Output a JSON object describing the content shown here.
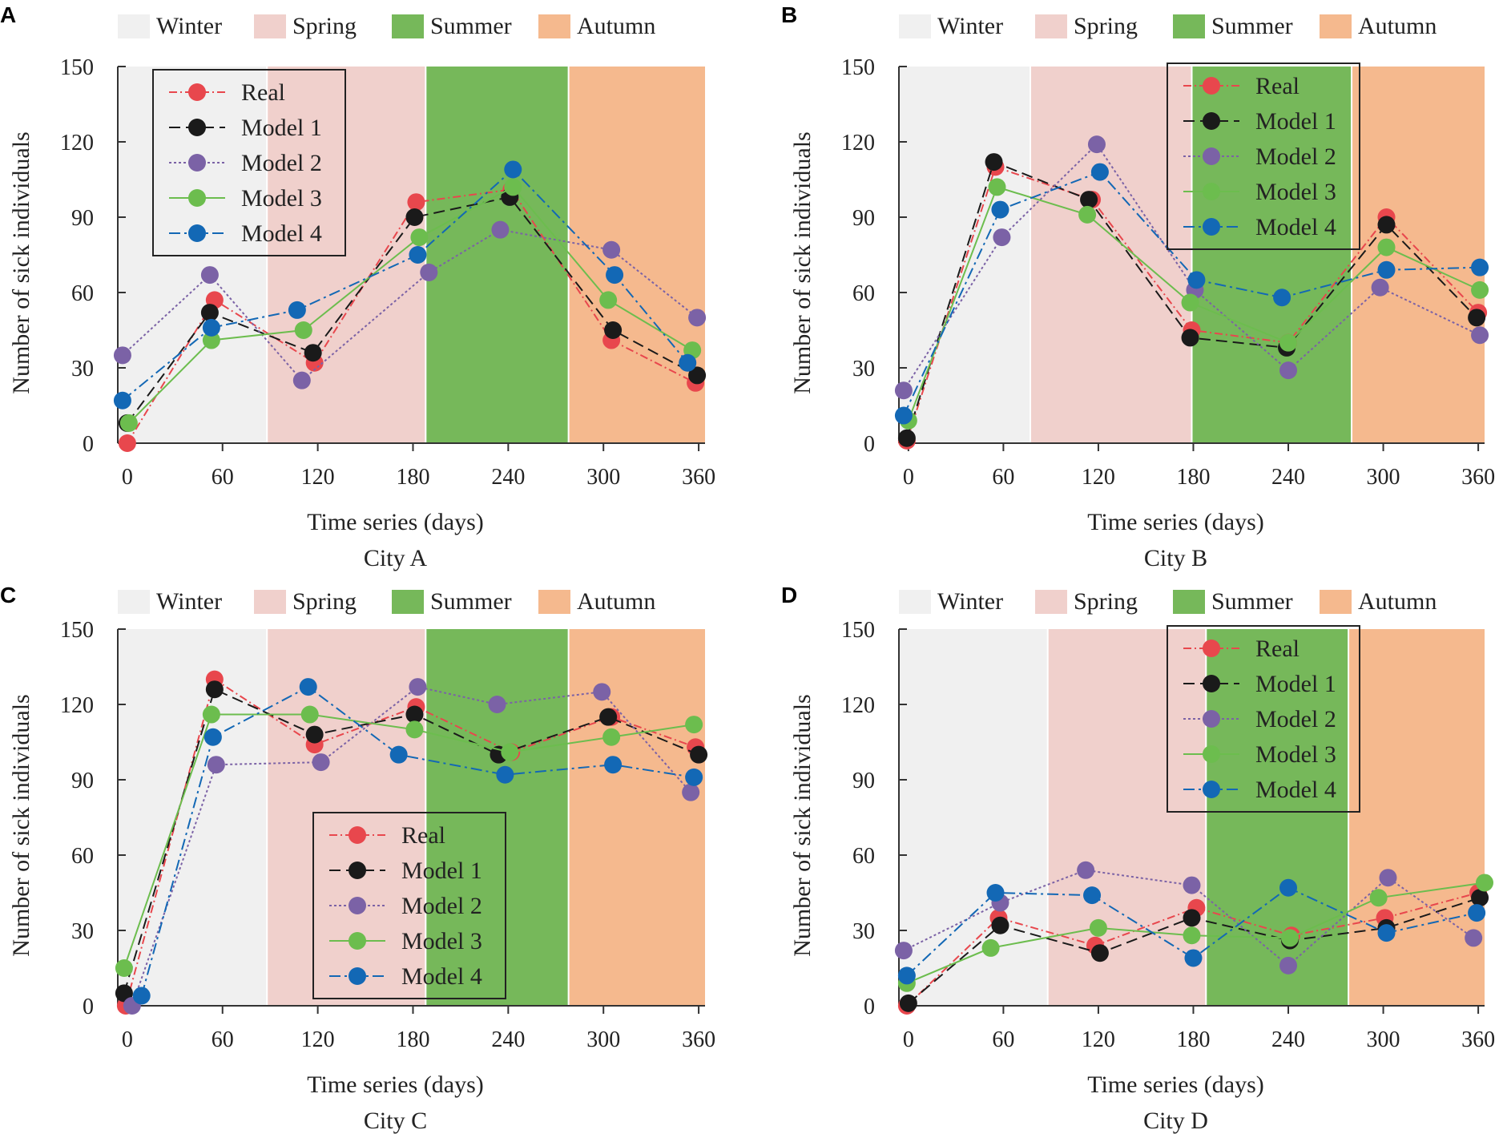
{
  "season_legend": [
    {
      "label": "Winter",
      "color": "#f0f0f0"
    },
    {
      "label": "Spring",
      "color": "#f0d0cc"
    },
    {
      "label": "Summer",
      "color": "#76b85a"
    },
    {
      "label": "Autumn",
      "color": "#f5b98e"
    }
  ],
  "series_styles": [
    {
      "name": "Real",
      "color": "#e8474d",
      "dash": "10,4,2,4"
    },
    {
      "name": "Model 1",
      "color": "#1a1a1a",
      "dash": "14,7"
    },
    {
      "name": "Model 2",
      "color": "#7b62a6",
      "dash": "3,3"
    },
    {
      "name": "Model 3",
      "color": "#6cbd4e",
      "dash": ""
    },
    {
      "name": "Model 4",
      "color": "#1368b5",
      "dash": "14,5,3,5"
    }
  ],
  "chart_data": [
    {
      "type": "line",
      "panel": "A",
      "title": "City A",
      "xlabel": "Time series (days)",
      "ylabel": "Number of sick individuals",
      "xlim": [
        -6,
        364
      ],
      "ylim": [
        0,
        150
      ],
      "xticks": [
        0,
        60,
        120,
        180,
        240,
        300,
        360
      ],
      "yticks": [
        0,
        30,
        60,
        90,
        120,
        150
      ],
      "seasons": {
        "winter": [
          -6,
          88
        ],
        "spring": [
          88,
          188
        ],
        "summer": [
          188,
          278
        ],
        "autumn": [
          278,
          364
        ]
      },
      "legend_position": "top-left",
      "series": [
        {
          "name": "Real",
          "x": [
            0,
            55,
            118,
            182,
            242,
            305,
            358
          ],
          "y": [
            0,
            57,
            32,
            96,
            101,
            41,
            24
          ]
        },
        {
          "name": "Model 1",
          "x": [
            0,
            52,
            117,
            181,
            241,
            306,
            359
          ],
          "y": [
            8,
            52,
            36,
            90,
            98,
            45,
            27
          ]
        },
        {
          "name": "Model 2",
          "x": [
            -3,
            52,
            110,
            190,
            235,
            305,
            359
          ],
          "y": [
            35,
            67,
            25,
            68,
            85,
            77,
            50
          ]
        },
        {
          "name": "Model 3",
          "x": [
            1,
            53,
            111,
            184,
            243,
            303,
            356
          ],
          "y": [
            8,
            41,
            45,
            82,
            102,
            57,
            37
          ]
        },
        {
          "name": "Model 4",
          "x": [
            -3,
            53,
            107,
            183,
            243,
            307,
            353
          ],
          "y": [
            17,
            46,
            53,
            75,
            109,
            67,
            32
          ]
        }
      ]
    },
    {
      "type": "line",
      "panel": "B",
      "title": "City B",
      "xlabel": "Time series (days)",
      "ylabel": "Number of sick individuals",
      "xlim": [
        -6,
        364
      ],
      "ylim": [
        0,
        150
      ],
      "xticks": [
        0,
        60,
        120,
        180,
        240,
        300,
        360
      ],
      "yticks": [
        0,
        30,
        60,
        90,
        120,
        150
      ],
      "seasons": {
        "winter": [
          -6,
          77
        ],
        "spring": [
          77,
          179
        ],
        "summer": [
          179,
          280
        ],
        "autumn": [
          280,
          364
        ]
      },
      "legend_position": "top-right",
      "series": [
        {
          "name": "Real",
          "x": [
            -1,
            55,
            116,
            179,
            240,
            302,
            360
          ],
          "y": [
            1,
            110,
            97,
            45,
            40,
            90,
            52
          ]
        },
        {
          "name": "Model 1",
          "x": [
            -1,
            54,
            114,
            178,
            239,
            302,
            359
          ],
          "y": [
            2,
            112,
            97,
            42,
            38,
            87,
            50
          ]
        },
        {
          "name": "Model 2",
          "x": [
            -3,
            59,
            119,
            181,
            240,
            298,
            361
          ],
          "y": [
            21,
            82,
            119,
            61,
            29,
            62,
            43
          ]
        },
        {
          "name": "Model 3",
          "x": [
            0,
            56,
            113,
            178,
            240,
            302,
            361
          ],
          "y": [
            9,
            102,
            91,
            56,
            40,
            78,
            61
          ]
        },
        {
          "name": "Model 4",
          "x": [
            -3,
            58,
            121,
            182,
            236,
            302,
            361
          ],
          "y": [
            11,
            93,
            108,
            65,
            58,
            69,
            70
          ]
        }
      ]
    },
    {
      "type": "line",
      "panel": "C",
      "title": "City C",
      "xlabel": "Time series (days)",
      "ylabel": "Number of sick individuals",
      "xlim": [
        -6,
        364
      ],
      "ylim": [
        0,
        150
      ],
      "xticks": [
        0,
        60,
        120,
        180,
        240,
        300,
        360
      ],
      "yticks": [
        0,
        30,
        60,
        90,
        120,
        150
      ],
      "seasons": {
        "winter": [
          -6,
          88
        ],
        "spring": [
          88,
          188
        ],
        "summer": [
          188,
          278
        ],
        "autumn": [
          278,
          364
        ]
      },
      "legend_position": "bottom-center",
      "series": [
        {
          "name": "Real",
          "x": [
            -1,
            55,
            118,
            182,
            242,
            305,
            358
          ],
          "y": [
            0,
            130,
            104,
            119,
            101,
            115,
            103
          ]
        },
        {
          "name": "Model 1",
          "x": [
            -2,
            55,
            118,
            181,
            234,
            303,
            360
          ],
          "y": [
            5,
            126,
            108,
            116,
            100,
            115,
            100
          ]
        },
        {
          "name": "Model 2",
          "x": [
            3,
            56,
            122,
            183,
            233,
            299,
            355
          ],
          "y": [
            0,
            96,
            97,
            127,
            120,
            125,
            85
          ]
        },
        {
          "name": "Model 3",
          "x": [
            -2,
            53,
            115,
            181,
            241,
            305,
            357
          ],
          "y": [
            15,
            116,
            116,
            110,
            101,
            107,
            112
          ]
        },
        {
          "name": "Model 4",
          "x": [
            9,
            54,
            114,
            171,
            238,
            306,
            357
          ],
          "y": [
            4,
            107,
            127,
            100,
            92,
            96,
            91
          ]
        }
      ]
    },
    {
      "type": "line",
      "panel": "D",
      "title": "City D",
      "xlabel": "Time series (days)",
      "ylabel": "Number of sick individuals",
      "xlim": [
        -6,
        364
      ],
      "ylim": [
        0,
        150
      ],
      "xticks": [
        0,
        60,
        120,
        180,
        240,
        300,
        360
      ],
      "yticks": [
        0,
        30,
        60,
        90,
        120,
        150
      ],
      "seasons": {
        "winter": [
          -6,
          88
        ],
        "spring": [
          88,
          188
        ],
        "summer": [
          188,
          278
        ],
        "autumn": [
          278,
          364
        ]
      },
      "legend_position": "top-right",
      "series": [
        {
          "name": "Real",
          "x": [
            -1,
            57,
            118,
            182,
            242,
            301,
            360
          ],
          "y": [
            0,
            35,
            24,
            39,
            28,
            35,
            45
          ]
        },
        {
          "name": "Model 1",
          "x": [
            0,
            58,
            121,
            179,
            241,
            302,
            361
          ],
          "y": [
            1,
            32,
            21,
            35,
            26,
            31,
            43
          ]
        },
        {
          "name": "Model 2",
          "x": [
            -3,
            58,
            112,
            179,
            240,
            303,
            357
          ],
          "y": [
            22,
            41,
            54,
            48,
            16,
            51,
            27
          ]
        },
        {
          "name": "Model 3",
          "x": [
            -1,
            52,
            120,
            179,
            241,
            297,
            364
          ],
          "y": [
            9,
            23,
            31,
            28,
            27,
            43,
            49
          ]
        },
        {
          "name": "Model 4",
          "x": [
            -1,
            55,
            116,
            180,
            240,
            302,
            359
          ],
          "y": [
            12,
            45,
            44,
            19,
            47,
            29,
            37
          ]
        }
      ]
    }
  ]
}
